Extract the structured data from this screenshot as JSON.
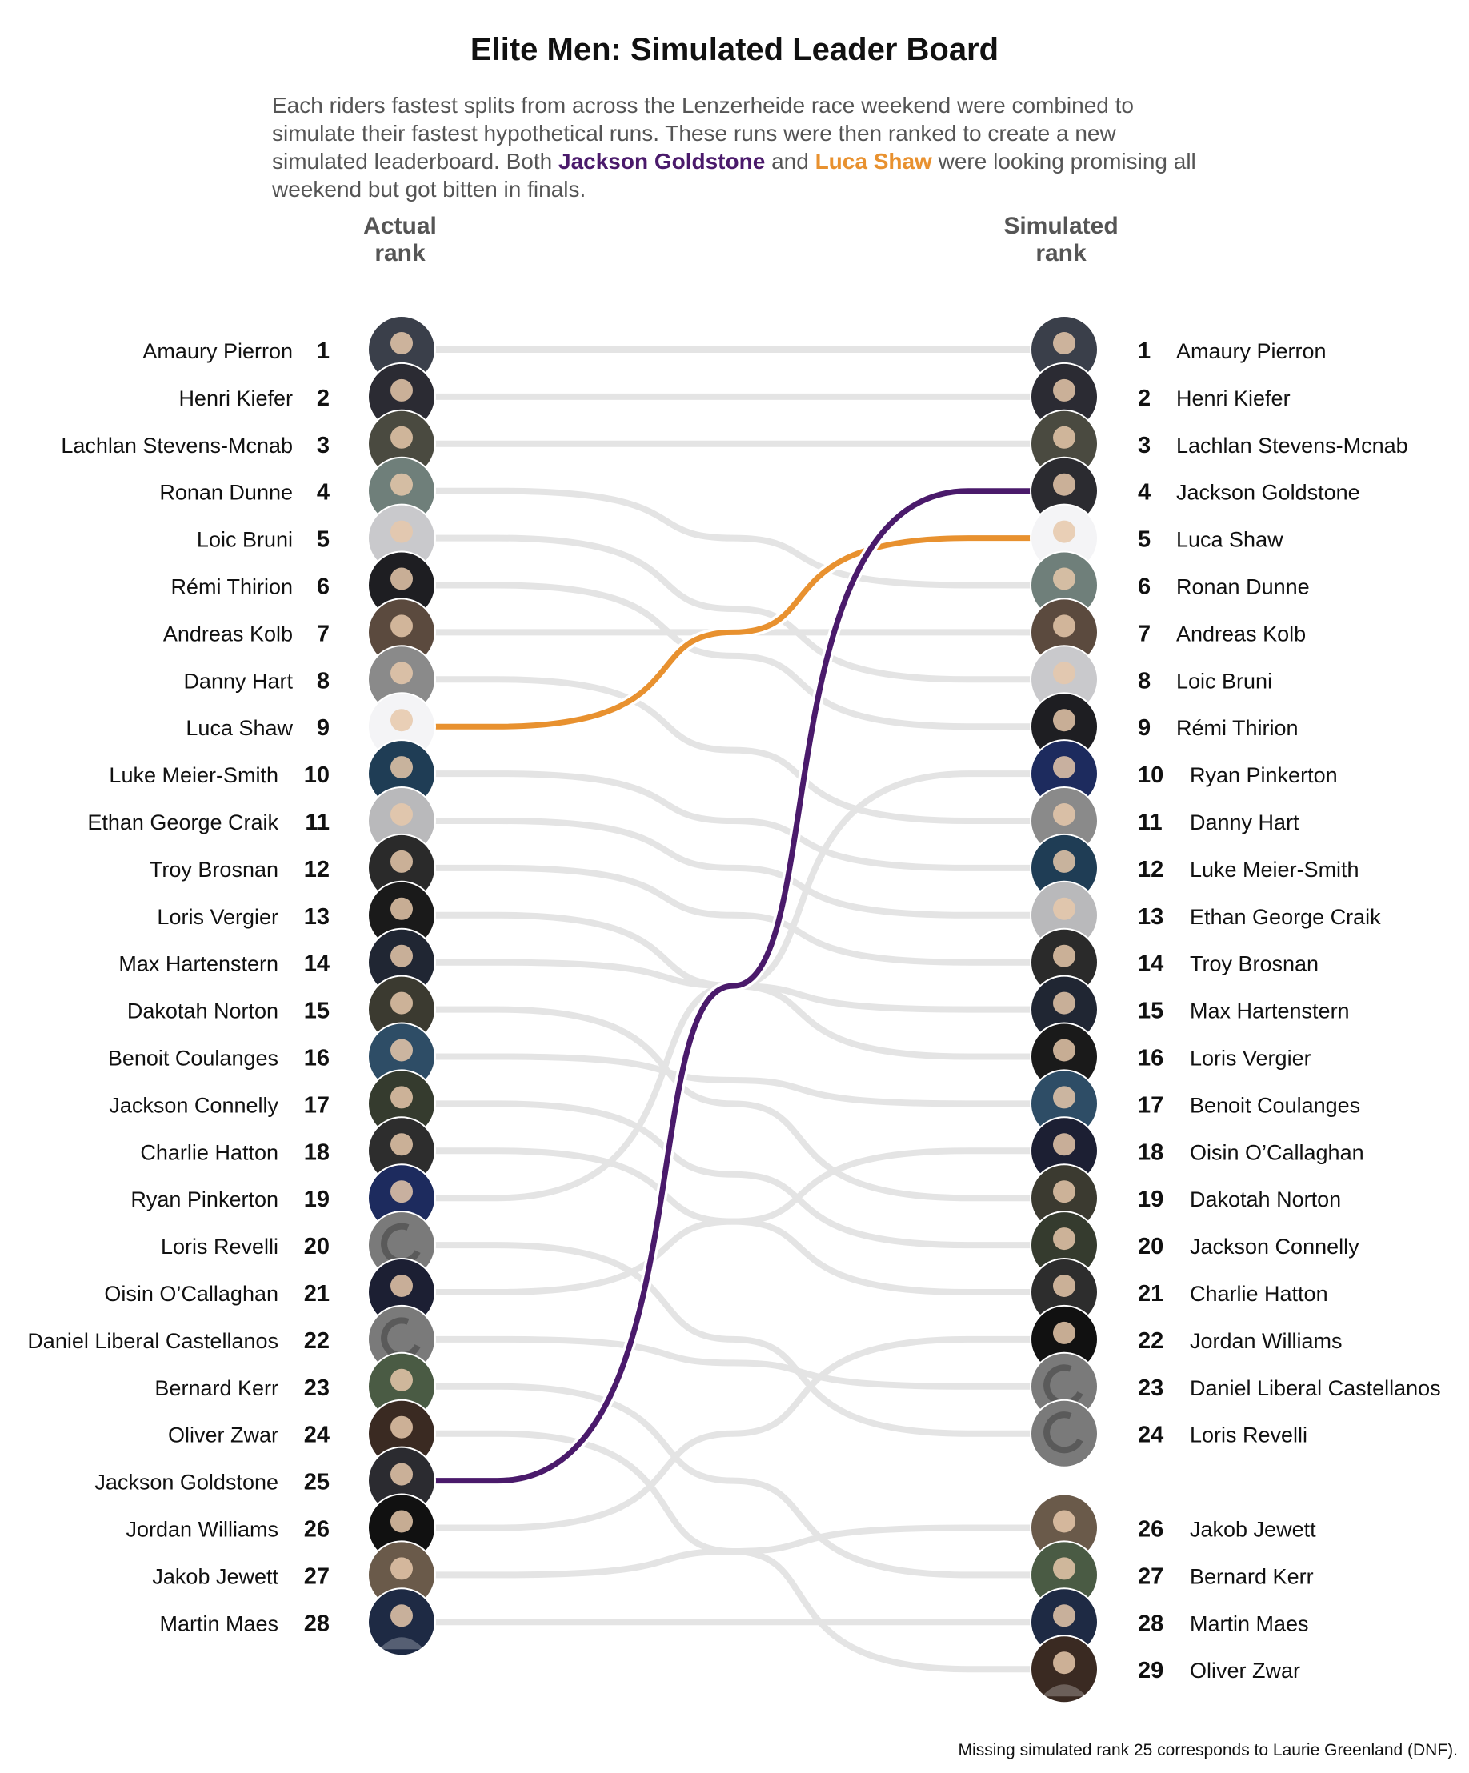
{
  "title": "Elite Men: Simulated Leader Board",
  "subtitle": {
    "part1": "Each riders fastest splits from across the Lenzerheide race weekend were combined to simulate their fastest hypothetical runs. These runs were then ranked to create a new simulated leaderboard. Both ",
    "highlight1": "Jackson Goldstone",
    "part2": " and ",
    "highlight2": "Luca Shaw",
    "part3": " were looking promising all weekend but got bitten in finals."
  },
  "headers": {
    "actual_line1": "Actual",
    "actual_line2": "rank",
    "simulated_line1": "Simulated",
    "simulated_line2": "rank"
  },
  "footnote": "Missing simulated rank 25 corresponds to Laurie Greenland (DNF).",
  "colors": {
    "line": "#e4e4e4",
    "jackson_goldstone": "#4a1a6b",
    "luca_shaw": "#e8912f",
    "text": "#111111",
    "header": "#555555"
  },
  "chart_data": {
    "type": "slope",
    "left_axis_label": "Actual rank",
    "right_axis_label": "Simulated rank",
    "highlighted": [
      "Jackson Goldstone",
      "Luca Shaw"
    ],
    "riders": [
      {
        "name": "Amaury Pierron",
        "actual": 1,
        "simulated": 1
      },
      {
        "name": "Henri Kiefer",
        "actual": 2,
        "simulated": 2
      },
      {
        "name": "Lachlan Stevens-Mcnab",
        "actual": 3,
        "simulated": 3
      },
      {
        "name": "Ronan Dunne",
        "actual": 4,
        "simulated": 6
      },
      {
        "name": "Loic Bruni",
        "actual": 5,
        "simulated": 8
      },
      {
        "name": "Rémi Thirion",
        "actual": 6,
        "simulated": 9
      },
      {
        "name": "Andreas Kolb",
        "actual": 7,
        "simulated": 7
      },
      {
        "name": "Danny Hart",
        "actual": 8,
        "simulated": 11
      },
      {
        "name": "Luca Shaw",
        "actual": 9,
        "simulated": 5
      },
      {
        "name": "Luke Meier-Smith",
        "actual": 10,
        "simulated": 12
      },
      {
        "name": "Ethan George Craik",
        "actual": 11,
        "simulated": 13
      },
      {
        "name": "Troy Brosnan",
        "actual": 12,
        "simulated": 14
      },
      {
        "name": "Loris Vergier",
        "actual": 13,
        "simulated": 16
      },
      {
        "name": "Max Hartenstern",
        "actual": 14,
        "simulated": 15
      },
      {
        "name": "Dakotah Norton",
        "actual": 15,
        "simulated": 19
      },
      {
        "name": "Benoit Coulanges",
        "actual": 16,
        "simulated": 17
      },
      {
        "name": "Jackson Connelly",
        "actual": 17,
        "simulated": 20
      },
      {
        "name": "Charlie Hatton",
        "actual": 18,
        "simulated": 21
      },
      {
        "name": "Ryan Pinkerton",
        "actual": 19,
        "simulated": 10
      },
      {
        "name": "Loris Revelli",
        "actual": 20,
        "simulated": 24
      },
      {
        "name": "Oisin O’Callaghan",
        "actual": 21,
        "simulated": 18
      },
      {
        "name": "Daniel Liberal Castellanos",
        "actual": 22,
        "simulated": 23
      },
      {
        "name": "Bernard Kerr",
        "actual": 23,
        "simulated": 27
      },
      {
        "name": "Oliver Zwar",
        "actual": 24,
        "simulated": 29
      },
      {
        "name": "Jackson Goldstone",
        "actual": 25,
        "simulated": 4
      },
      {
        "name": "Jordan Williams",
        "actual": 26,
        "simulated": 22
      },
      {
        "name": "Jakob Jewett",
        "actual": 27,
        "simulated": 26
      },
      {
        "name": "Martin Maes",
        "actual": 28,
        "simulated": 28
      }
    ]
  }
}
